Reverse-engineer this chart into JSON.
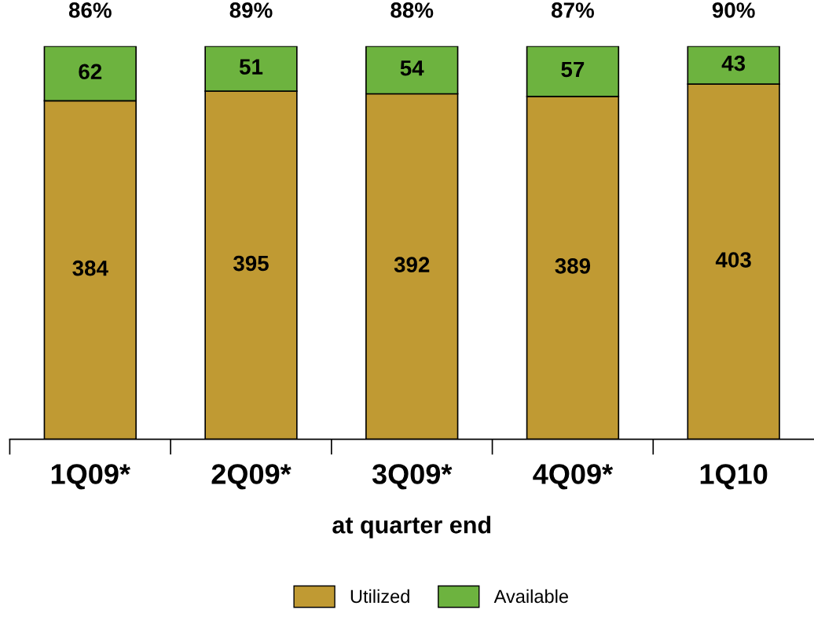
{
  "chart_data": {
    "type": "bar",
    "stacked": true,
    "xlabel": "at quarter end",
    "categories": [
      "1Q09*",
      "2Q09*",
      "3Q09*",
      "4Q09*",
      "1Q10"
    ],
    "series": [
      {
        "name": "Utilized",
        "color": "#c09a33",
        "values": [
          384,
          395,
          392,
          389,
          403
        ]
      },
      {
        "name": "Available",
        "color": "#6db33f",
        "values": [
          62,
          51,
          54,
          57,
          43
        ]
      }
    ],
    "annotations": [
      "86%",
      "89%",
      "88%",
      "87%",
      "90%"
    ],
    "data_labels": true,
    "legend": "bottom",
    "grid": false,
    "tick_labels": "x"
  }
}
